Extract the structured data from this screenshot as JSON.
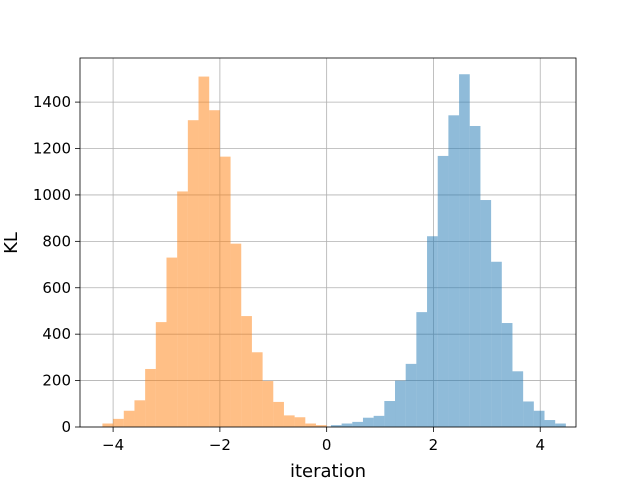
{
  "chart_data": {
    "type": "bar",
    "title": "",
    "xlabel": "iteration",
    "ylabel": "KL",
    "xlim": [
      -4.62,
      4.67
    ],
    "ylim": [
      0,
      1590
    ],
    "grid": true,
    "x_ticks": [
      -4,
      -2,
      0,
      2,
      4
    ],
    "x_tick_labels": [
      "−4",
      "−2",
      "0",
      "2",
      "4"
    ],
    "y_ticks": [
      0,
      200,
      400,
      600,
      800,
      1000,
      1200,
      1400
    ],
    "y_tick_labels": [
      "0",
      "200",
      "400",
      "600",
      "800",
      "1000",
      "1200",
      "1400"
    ],
    "series": [
      {
        "color": "#1f77b4",
        "opacity": 0.5,
        "bins": [
          {
            "x0": 0.08,
            "x1": 0.28,
            "y": 8
          },
          {
            "x0": 0.28,
            "x1": 0.48,
            "y": 15
          },
          {
            "x0": 0.48,
            "x1": 0.68,
            "y": 22
          },
          {
            "x0": 0.68,
            "x1": 0.88,
            "y": 40
          },
          {
            "x0": 0.88,
            "x1": 1.08,
            "y": 48
          },
          {
            "x0": 1.08,
            "x1": 1.28,
            "y": 112
          },
          {
            "x0": 1.28,
            "x1": 1.48,
            "y": 200
          },
          {
            "x0": 1.48,
            "x1": 1.68,
            "y": 272
          },
          {
            "x0": 1.68,
            "x1": 1.88,
            "y": 495
          },
          {
            "x0": 1.88,
            "x1": 2.08,
            "y": 822
          },
          {
            "x0": 2.08,
            "x1": 2.28,
            "y": 1168
          },
          {
            "x0": 2.28,
            "x1": 2.48,
            "y": 1343
          },
          {
            "x0": 2.48,
            "x1": 2.68,
            "y": 1520
          },
          {
            "x0": 2.68,
            "x1": 2.88,
            "y": 1297
          },
          {
            "x0": 2.88,
            "x1": 3.08,
            "y": 978
          },
          {
            "x0": 3.08,
            "x1": 3.28,
            "y": 712
          },
          {
            "x0": 3.28,
            "x1": 3.48,
            "y": 448
          },
          {
            "x0": 3.48,
            "x1": 3.68,
            "y": 240
          },
          {
            "x0": 3.68,
            "x1": 3.88,
            "y": 110
          },
          {
            "x0": 3.88,
            "x1": 4.08,
            "y": 70
          },
          {
            "x0": 4.08,
            "x1": 4.28,
            "y": 30
          },
          {
            "x0": 4.28,
            "x1": 4.48,
            "y": 15
          }
        ]
      },
      {
        "color": "#ff7f0e",
        "opacity": 0.5,
        "bins": [
          {
            "x0": -4.2,
            "x1": -4.0,
            "y": 15
          },
          {
            "x0": -4.0,
            "x1": -3.8,
            "y": 35
          },
          {
            "x0": -3.8,
            "x1": -3.6,
            "y": 70
          },
          {
            "x0": -3.6,
            "x1": -3.4,
            "y": 115
          },
          {
            "x0": -3.4,
            "x1": -3.2,
            "y": 250
          },
          {
            "x0": -3.2,
            "x1": -3.0,
            "y": 452
          },
          {
            "x0": -3.0,
            "x1": -2.8,
            "y": 730
          },
          {
            "x0": -2.8,
            "x1": -2.6,
            "y": 1015
          },
          {
            "x0": -2.6,
            "x1": -2.4,
            "y": 1322
          },
          {
            "x0": -2.4,
            "x1": -2.2,
            "y": 1510
          },
          {
            "x0": -2.2,
            "x1": -2.0,
            "y": 1365
          },
          {
            "x0": -2.0,
            "x1": -1.8,
            "y": 1165
          },
          {
            "x0": -1.8,
            "x1": -1.6,
            "y": 790
          },
          {
            "x0": -1.6,
            "x1": -1.4,
            "y": 478
          },
          {
            "x0": -1.4,
            "x1": -1.2,
            "y": 322
          },
          {
            "x0": -1.2,
            "x1": -1.0,
            "y": 198
          },
          {
            "x0": -1.0,
            "x1": -0.8,
            "y": 108
          },
          {
            "x0": -0.8,
            "x1": -0.6,
            "y": 50
          },
          {
            "x0": -0.6,
            "x1": -0.4,
            "y": 42
          },
          {
            "x0": -0.4,
            "x1": -0.2,
            "y": 15
          },
          {
            "x0": -0.2,
            "x1": 0.0,
            "y": 8
          }
        ]
      }
    ]
  }
}
